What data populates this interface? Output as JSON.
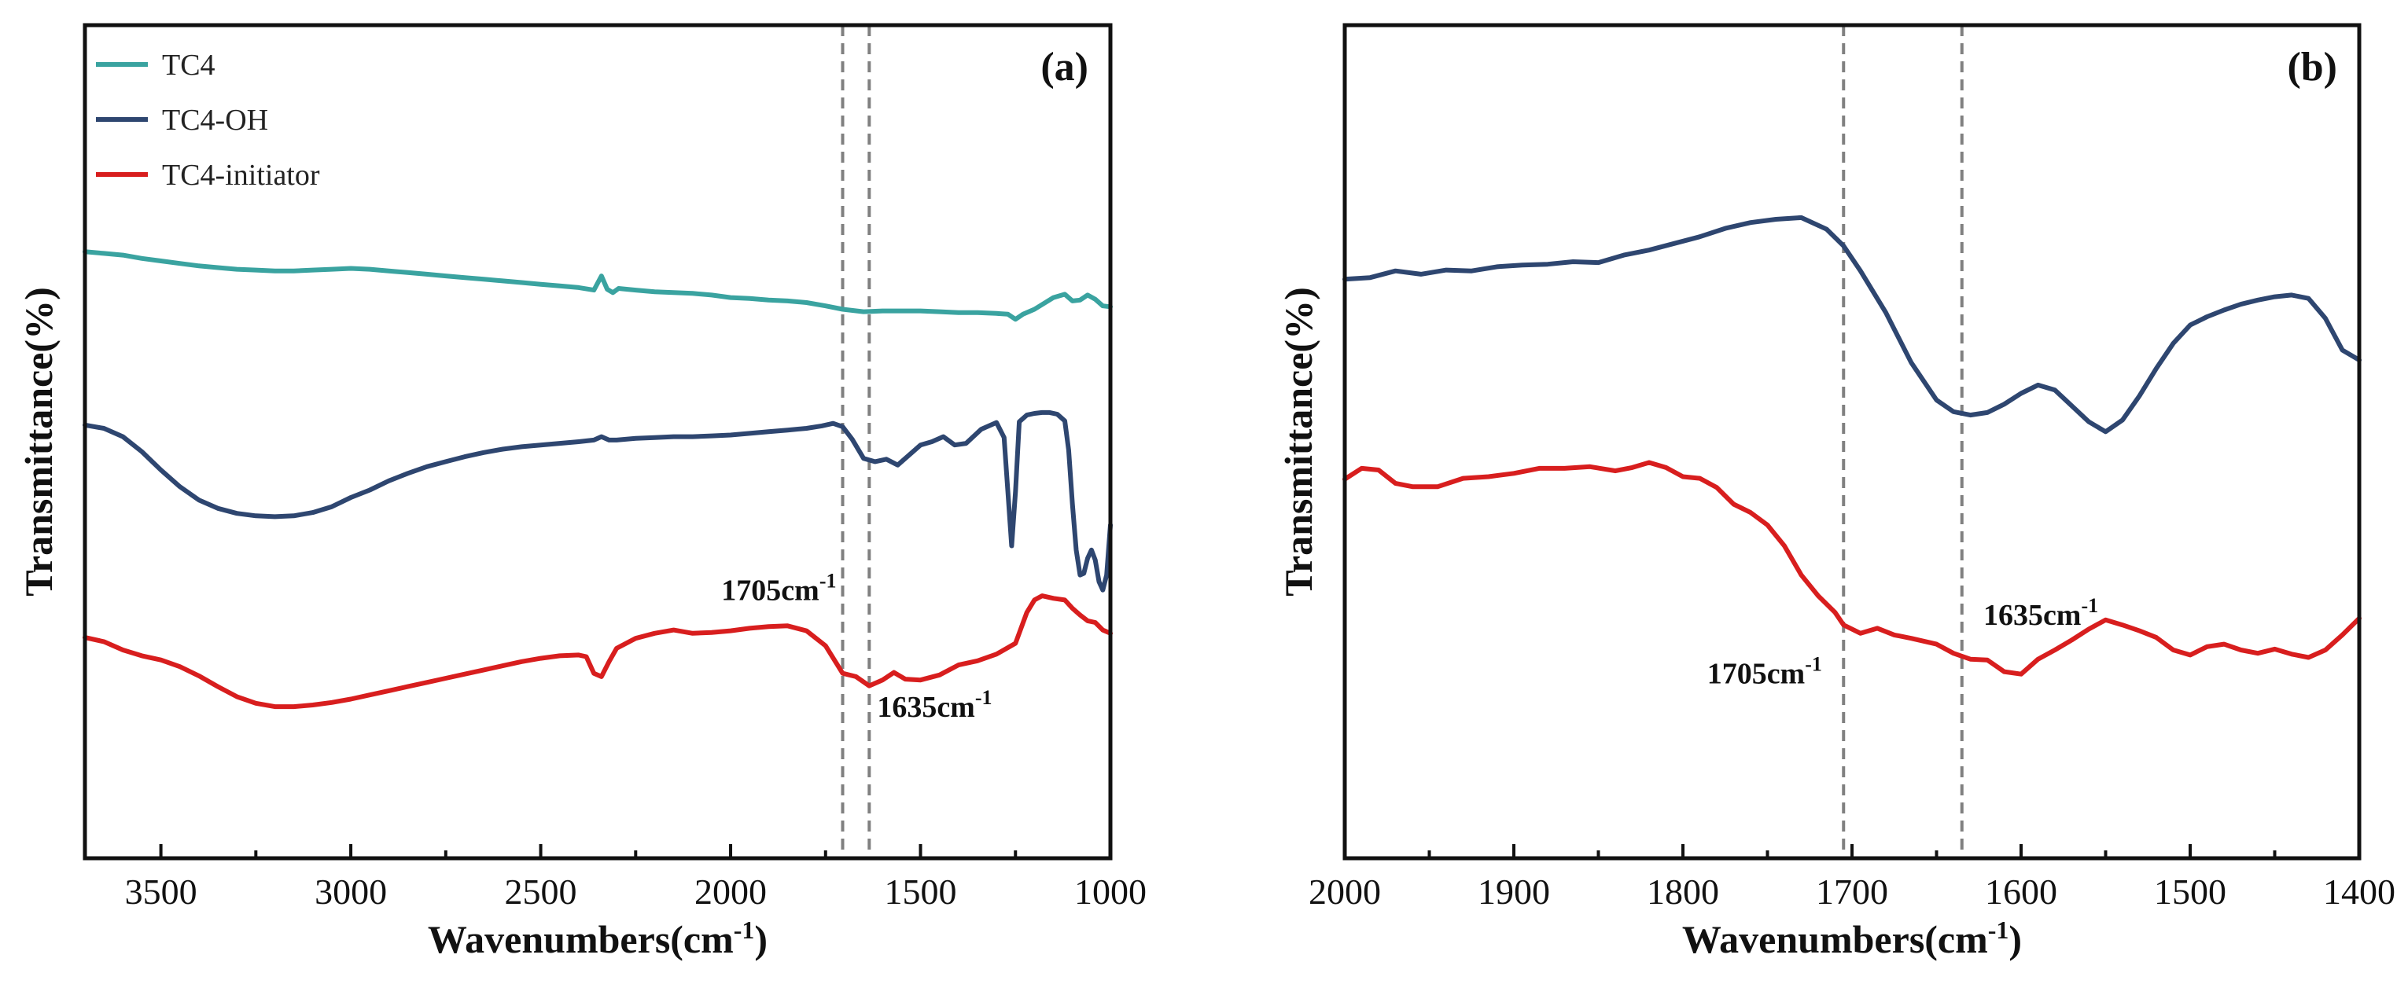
{
  "chart_data": [
    {
      "type": "line",
      "panel_label": "(a)",
      "xlabel_main": "Wavenumbers(cm",
      "xlabel_sup": "-1",
      "xlabel_end": ")",
      "ylabel": "Transmittance(%)",
      "xlim": [
        3700,
        1000
      ],
      "ylim": [
        0,
        100
      ],
      "x_reversed": true,
      "x_ticks": [
        3500,
        3000,
        2500,
        2000,
        1500,
        1000
      ],
      "y_ticks": false,
      "legend": {
        "position": "top-left"
      },
      "reference_lines": [
        1705,
        1635
      ],
      "annotations": [
        {
          "text": "1705cm",
          "sup": "-1",
          "x": 1705,
          "y": 31,
          "anchor": "end"
        },
        {
          "text": "1635cm",
          "sup": "-1",
          "x": 1635,
          "y": 17,
          "anchor": "start"
        }
      ],
      "series": [
        {
          "name": "TC4",
          "color": "#3aa3a0",
          "x": [
            3700,
            3650,
            3600,
            3550,
            3500,
            3450,
            3400,
            3350,
            3300,
            3250,
            3200,
            3150,
            3100,
            3050,
            3000,
            2950,
            2900,
            2850,
            2800,
            2750,
            2700,
            2650,
            2600,
            2550,
            2500,
            2450,
            2400,
            2360,
            2340,
            2325,
            2310,
            2295,
            2250,
            2200,
            2150,
            2100,
            2050,
            2000,
            1950,
            1900,
            1850,
            1800,
            1750,
            1705,
            1650,
            1600,
            1550,
            1500,
            1450,
            1400,
            1350,
            1300,
            1270,
            1250,
            1230,
            1200,
            1150,
            1120,
            1100,
            1080,
            1060,
            1040,
            1020,
            1000
          ],
          "y": [
            72.8,
            72.6,
            72.4,
            72.0,
            71.7,
            71.4,
            71.1,
            70.9,
            70.7,
            70.6,
            70.5,
            70.5,
            70.6,
            70.7,
            70.8,
            70.7,
            70.5,
            70.3,
            70.1,
            69.9,
            69.7,
            69.5,
            69.3,
            69.1,
            68.9,
            68.7,
            68.5,
            68.2,
            69.9,
            68.3,
            67.9,
            68.4,
            68.2,
            68.0,
            67.9,
            67.8,
            67.6,
            67.3,
            67.2,
            67.0,
            66.9,
            66.7,
            66.3,
            65.9,
            65.6,
            65.7,
            65.7,
            65.7,
            65.6,
            65.5,
            65.5,
            65.4,
            65.3,
            64.7,
            65.3,
            65.9,
            67.3,
            67.7,
            66.9,
            67.0,
            67.6,
            67.1,
            66.3,
            66.2
          ]
        },
        {
          "name": "TC4-OH",
          "color": "#2e4670",
          "x": [
            3700,
            3650,
            3600,
            3550,
            3500,
            3450,
            3400,
            3350,
            3300,
            3250,
            3200,
            3150,
            3100,
            3050,
            3000,
            2950,
            2900,
            2850,
            2800,
            2750,
            2700,
            2650,
            2600,
            2550,
            2500,
            2450,
            2400,
            2360,
            2340,
            2320,
            2300,
            2250,
            2200,
            2150,
            2100,
            2050,
            2000,
            1950,
            1900,
            1850,
            1800,
            1760,
            1730,
            1705,
            1680,
            1650,
            1620,
            1590,
            1560,
            1530,
            1500,
            1470,
            1440,
            1410,
            1380,
            1340,
            1300,
            1280,
            1270,
            1260,
            1250,
            1240,
            1220,
            1200,
            1180,
            1160,
            1140,
            1120,
            1110,
            1100,
            1090,
            1080,
            1070,
            1060,
            1050,
            1040,
            1030,
            1020,
            1010,
            1000
          ],
          "y": [
            52.0,
            51.6,
            50.6,
            48.8,
            46.6,
            44.6,
            43.0,
            42.0,
            41.4,
            41.1,
            41.0,
            41.1,
            41.5,
            42.2,
            43.3,
            44.2,
            45.3,
            46.2,
            47.0,
            47.6,
            48.2,
            48.7,
            49.1,
            49.4,
            49.6,
            49.8,
            50.0,
            50.2,
            50.6,
            50.2,
            50.2,
            50.4,
            50.5,
            50.6,
            50.6,
            50.7,
            50.8,
            51.0,
            51.2,
            51.4,
            51.6,
            51.9,
            52.2,
            51.8,
            50.3,
            48.0,
            47.6,
            47.9,
            47.2,
            48.4,
            49.6,
            50.0,
            50.6,
            49.6,
            49.8,
            51.5,
            52.3,
            50.5,
            44.0,
            37.5,
            44.0,
            52.4,
            53.2,
            53.4,
            53.5,
            53.5,
            53.3,
            52.5,
            49.0,
            42.5,
            37.0,
            34.0,
            34.2,
            36.0,
            37.0,
            35.8,
            33.2,
            32.2,
            34.0,
            40.0
          ]
        },
        {
          "name": "TC4-initiator",
          "color": "#d81e1e",
          "x": [
            3700,
            3650,
            3600,
            3550,
            3500,
            3450,
            3400,
            3350,
            3300,
            3250,
            3200,
            3150,
            3100,
            3050,
            3000,
            2950,
            2900,
            2850,
            2800,
            2750,
            2700,
            2650,
            2600,
            2550,
            2500,
            2450,
            2400,
            2380,
            2360,
            2340,
            2320,
            2300,
            2250,
            2200,
            2150,
            2100,
            2050,
            2000,
            1950,
            1900,
            1850,
            1800,
            1750,
            1705,
            1670,
            1635,
            1600,
            1570,
            1540,
            1500,
            1450,
            1400,
            1350,
            1300,
            1250,
            1220,
            1200,
            1180,
            1150,
            1120,
            1100,
            1080,
            1060,
            1040,
            1020,
            1000
          ],
          "y": [
            26.5,
            26.0,
            25.0,
            24.3,
            23.8,
            23.0,
            21.9,
            20.6,
            19.4,
            18.6,
            18.2,
            18.2,
            18.4,
            18.7,
            19.1,
            19.6,
            20.1,
            20.6,
            21.1,
            21.6,
            22.1,
            22.6,
            23.1,
            23.6,
            24.0,
            24.3,
            24.4,
            24.2,
            22.2,
            21.8,
            23.6,
            25.2,
            26.4,
            27.0,
            27.4,
            27.0,
            27.1,
            27.3,
            27.6,
            27.8,
            27.9,
            27.3,
            25.5,
            22.2,
            21.8,
            20.7,
            21.4,
            22.3,
            21.5,
            21.4,
            22.0,
            23.2,
            23.7,
            24.5,
            25.8,
            29.5,
            31.0,
            31.5,
            31.2,
            31.0,
            30.0,
            29.2,
            28.5,
            28.3,
            27.4,
            27.0
          ]
        }
      ]
    },
    {
      "type": "line",
      "panel_label": "(b)",
      "xlabel_main": "Wavenumbers(cm",
      "xlabel_sup": "-1",
      "xlabel_end": ")",
      "ylabel": "Transmittance(%)",
      "xlim": [
        2000,
        1400
      ],
      "ylim": [
        0,
        100
      ],
      "x_reversed": true,
      "x_ticks": [
        2000,
        1900,
        1800,
        1700,
        1600,
        1500,
        1400
      ],
      "y_ticks": false,
      "reference_lines": [
        1705,
        1635
      ],
      "annotations": [
        {
          "text": "1705cm",
          "sup": "-1",
          "x": 1714,
          "y": 21,
          "anchor": "end"
        },
        {
          "text": "1635cm",
          "sup": "-1",
          "x": 1627,
          "y": 28,
          "anchor": "start"
        }
      ],
      "series": [
        {
          "name": "TC4-OH",
          "color": "#2e4670",
          "x": [
            2000,
            1985,
            1970,
            1955,
            1940,
            1925,
            1910,
            1895,
            1880,
            1865,
            1850,
            1835,
            1820,
            1805,
            1790,
            1775,
            1760,
            1745,
            1730,
            1715,
            1705,
            1695,
            1680,
            1665,
            1650,
            1640,
            1630,
            1620,
            1610,
            1600,
            1590,
            1580,
            1570,
            1560,
            1550,
            1540,
            1530,
            1520,
            1510,
            1500,
            1490,
            1480,
            1470,
            1460,
            1450,
            1440,
            1430,
            1420,
            1410,
            1400
          ],
          "y": [
            69.5,
            69.7,
            70.5,
            70.1,
            70.6,
            70.5,
            71.0,
            71.2,
            71.3,
            71.6,
            71.5,
            72.4,
            73.0,
            73.8,
            74.6,
            75.6,
            76.3,
            76.7,
            76.9,
            75.5,
            73.5,
            70.5,
            65.5,
            59.5,
            55.0,
            53.6,
            53.2,
            53.5,
            54.5,
            55.8,
            56.8,
            56.2,
            54.3,
            52.4,
            51.2,
            52.6,
            55.5,
            58.8,
            61.8,
            64.0,
            65.0,
            65.8,
            66.5,
            67.0,
            67.4,
            67.6,
            67.2,
            64.8,
            61.0,
            59.8
          ]
        },
        {
          "name": "TC4-initiator",
          "color": "#d81e1e",
          "x": [
            2000,
            1990,
            1980,
            1970,
            1960,
            1945,
            1930,
            1915,
            1900,
            1885,
            1870,
            1855,
            1840,
            1830,
            1820,
            1810,
            1800,
            1790,
            1780,
            1770,
            1760,
            1750,
            1740,
            1730,
            1720,
            1710,
            1705,
            1695,
            1685,
            1675,
            1665,
            1650,
            1640,
            1630,
            1620,
            1610,
            1600,
            1590,
            1580,
            1570,
            1560,
            1550,
            1540,
            1530,
            1520,
            1510,
            1500,
            1490,
            1480,
            1470,
            1460,
            1450,
            1440,
            1430,
            1420,
            1410,
            1400
          ],
          "y": [
            45.5,
            46.8,
            46.6,
            45.0,
            44.6,
            44.6,
            45.6,
            45.8,
            46.2,
            46.8,
            46.8,
            47.0,
            46.5,
            46.9,
            47.5,
            46.9,
            45.8,
            45.6,
            44.5,
            42.5,
            41.5,
            40.0,
            37.5,
            34.0,
            31.5,
            29.5,
            28.0,
            27.0,
            27.6,
            26.8,
            26.4,
            25.7,
            24.6,
            23.9,
            23.8,
            22.4,
            22.1,
            23.9,
            25.0,
            26.2,
            27.5,
            28.6,
            28.0,
            27.3,
            26.5,
            25.0,
            24.4,
            25.4,
            25.7,
            25.0,
            24.6,
            25.1,
            24.5,
            24.1,
            25.0,
            26.8,
            28.8
          ]
        }
      ]
    }
  ]
}
